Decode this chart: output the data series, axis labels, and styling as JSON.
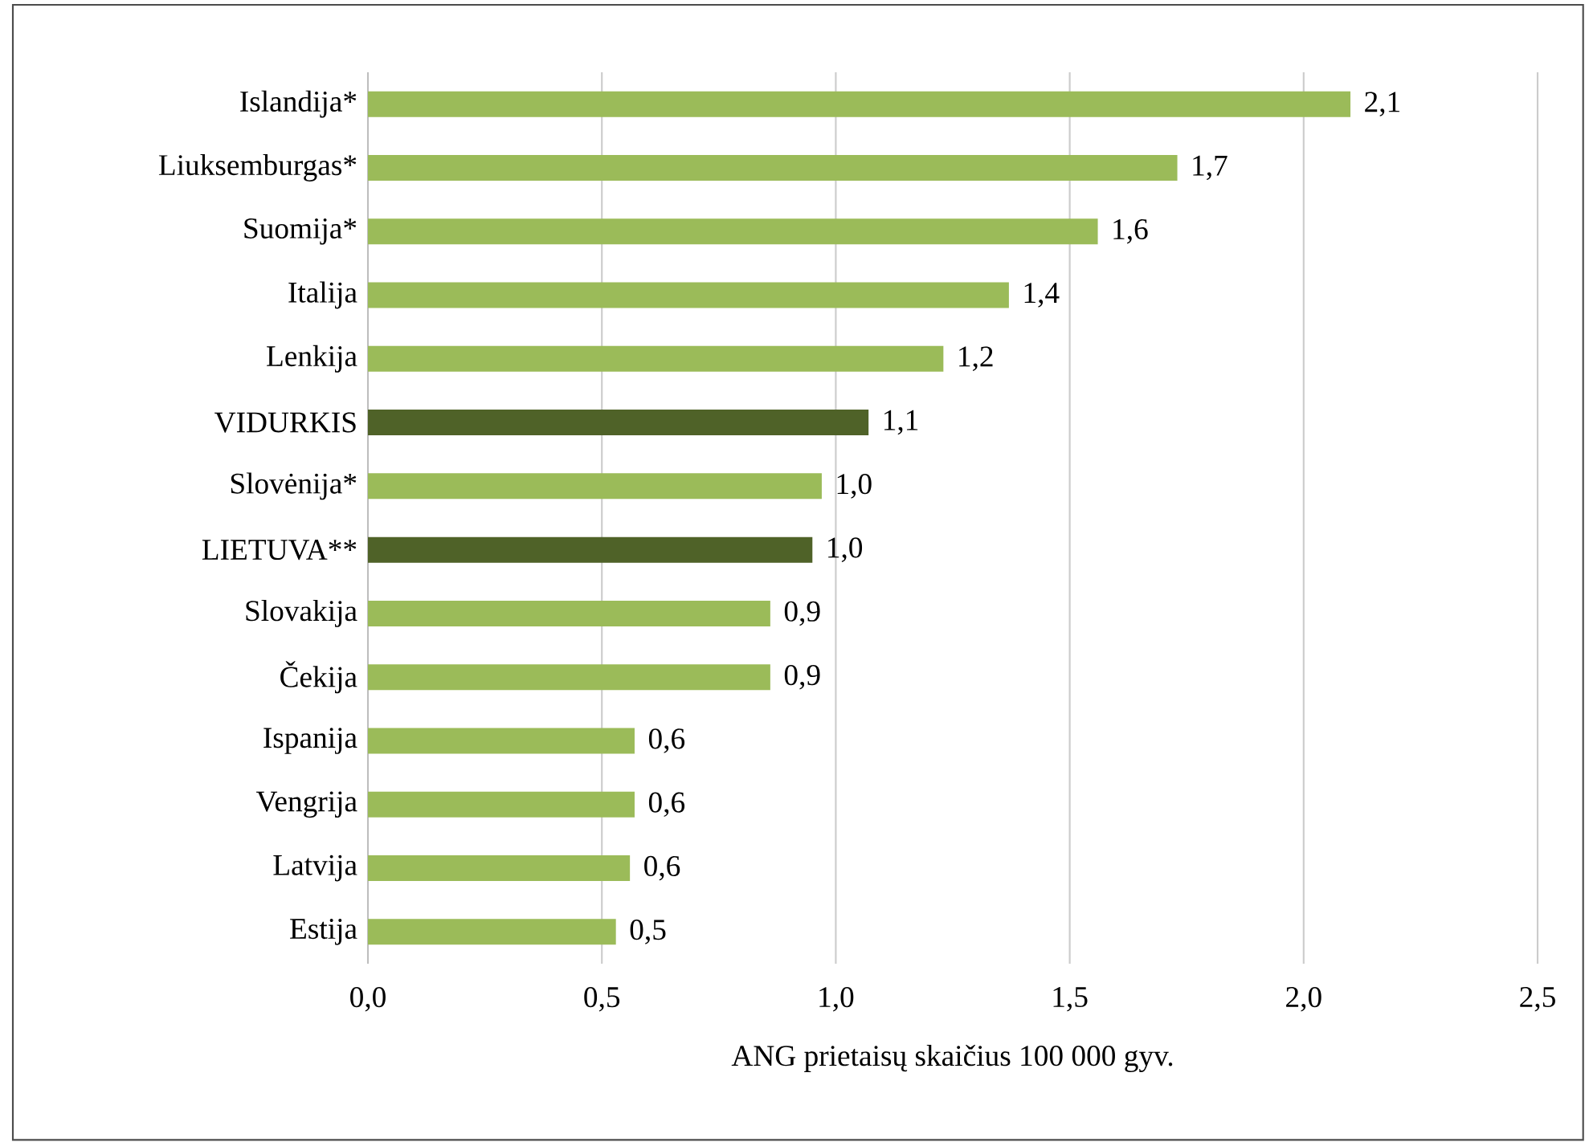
{
  "chart_data": {
    "type": "bar",
    "orientation": "horizontal",
    "xlabel": "ANG prietaisų skaičius 100 000 gyv.",
    "categories": [
      "Islandija*",
      "Liuksemburgas*",
      "Suomija*",
      "Italija",
      "Lenkija",
      "VIDURKIS",
      "Slovėnija*",
      "LIETUVA**",
      "Slovakija",
      "Čekija",
      "Ispanija",
      "Vengrija",
      "Latvija",
      "Estija"
    ],
    "values": [
      2.1,
      1.73,
      1.56,
      1.37,
      1.23,
      1.07,
      0.97,
      0.95,
      0.86,
      0.86,
      0.57,
      0.57,
      0.56,
      0.53
    ],
    "value_labels": [
      "2,1",
      "1,7",
      "1,6",
      "1,4",
      "1,2",
      "1,1",
      "1,0",
      "1,0",
      "0,9",
      "0,9",
      "0,6",
      "0,6",
      "0,6",
      "0,5"
    ],
    "colors": [
      "#9bbb59",
      "#9bbb59",
      "#9bbb59",
      "#9bbb59",
      "#9bbb59",
      "#4f6228",
      "#9bbb59",
      "#4f6228",
      "#9bbb59",
      "#9bbb59",
      "#9bbb59",
      "#9bbb59",
      "#9bbb59",
      "#9bbb59"
    ],
    "xlim": [
      0,
      2.5
    ],
    "xticks": [
      {
        "value": 0,
        "label": "0,0"
      },
      {
        "value": 0.5,
        "label": "0,5"
      },
      {
        "value": 1,
        "label": "1,0"
      },
      {
        "value": 1.5,
        "label": "1,5"
      },
      {
        "value": 2,
        "label": "2,0"
      },
      {
        "value": 2.5,
        "label": "2,5"
      }
    ],
    "grid": "x"
  }
}
